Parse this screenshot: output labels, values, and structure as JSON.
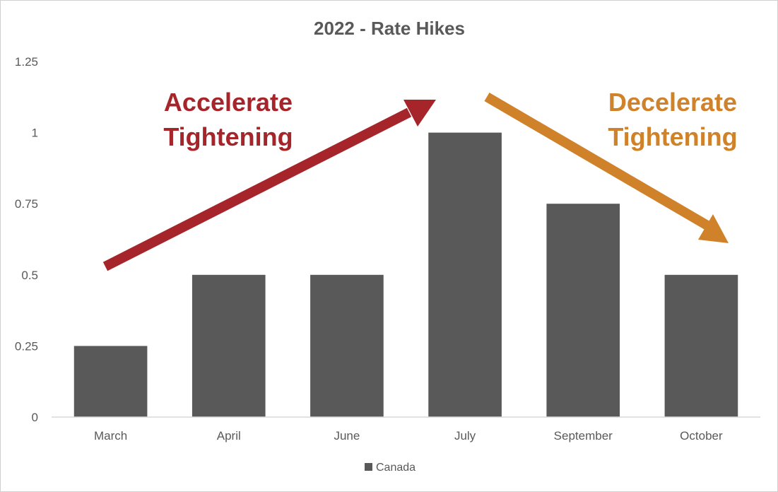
{
  "chart_data": {
    "type": "bar",
    "title": "2022 - Rate Hikes",
    "categories": [
      "March",
      "April",
      "June",
      "July",
      "September",
      "October"
    ],
    "series": [
      {
        "name": "Canada",
        "values": [
          0.25,
          0.5,
          0.5,
          1,
          0.75,
          0.5
        ]
      }
    ],
    "ylim": [
      0,
      1.25
    ],
    "yticks": [
      "0",
      "0.25",
      "0.5",
      "0.75",
      "1",
      "1.25"
    ],
    "xlabel": "",
    "ylabel": "",
    "grid": false,
    "legend_position": "bottom",
    "bar_color": "#595959",
    "annotations": [
      {
        "lines": [
          "Accelerate",
          "Tightening"
        ],
        "color": "#A6252A"
      },
      {
        "lines": [
          "Decelerate",
          "Tightening"
        ],
        "color": "#D0822A"
      }
    ]
  }
}
